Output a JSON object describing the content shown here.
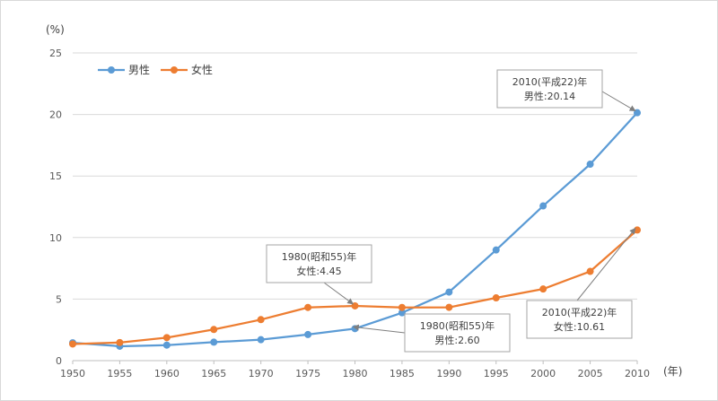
{
  "chart_data": {
    "type": "line",
    "x": [
      1950,
      1955,
      1960,
      1965,
      1970,
      1975,
      1980,
      1985,
      1990,
      1995,
      2000,
      2005,
      2010
    ],
    "series": [
      {
        "name": "男性",
        "color": "#5b9bd5",
        "values": [
          1.45,
          1.17,
          1.26,
          1.5,
          1.7,
          2.12,
          2.6,
          3.89,
          5.57,
          8.99,
          12.57,
          15.96,
          20.14
        ]
      },
      {
        "name": "女性",
        "color": "#ed7d31",
        "values": [
          1.35,
          1.47,
          1.87,
          2.53,
          3.33,
          4.32,
          4.45,
          4.32,
          4.33,
          5.1,
          5.82,
          7.25,
          10.61
        ]
      }
    ],
    "ylim": [
      0,
      25
    ],
    "yticks": [
      0,
      5,
      10,
      15,
      20,
      25
    ],
    "y_unit": "(%)",
    "x_unit": "(年)",
    "grid": true,
    "legend": "top-left",
    "annotations": [
      {
        "series": "男性",
        "x": 2010,
        "line1": "2010(平成22)年",
        "line2": "男性:20.14"
      },
      {
        "series": "女性",
        "x": 1980,
        "line1": "1980(昭和55)年",
        "line2": "女性:4.45"
      },
      {
        "series": "男性",
        "x": 1980,
        "line1": "1980(昭和55)年",
        "line2": "男性:2.60"
      },
      {
        "series": "女性",
        "x": 2010,
        "line1": "2010(平成22)年",
        "line2": "女性:10.61"
      }
    ]
  }
}
